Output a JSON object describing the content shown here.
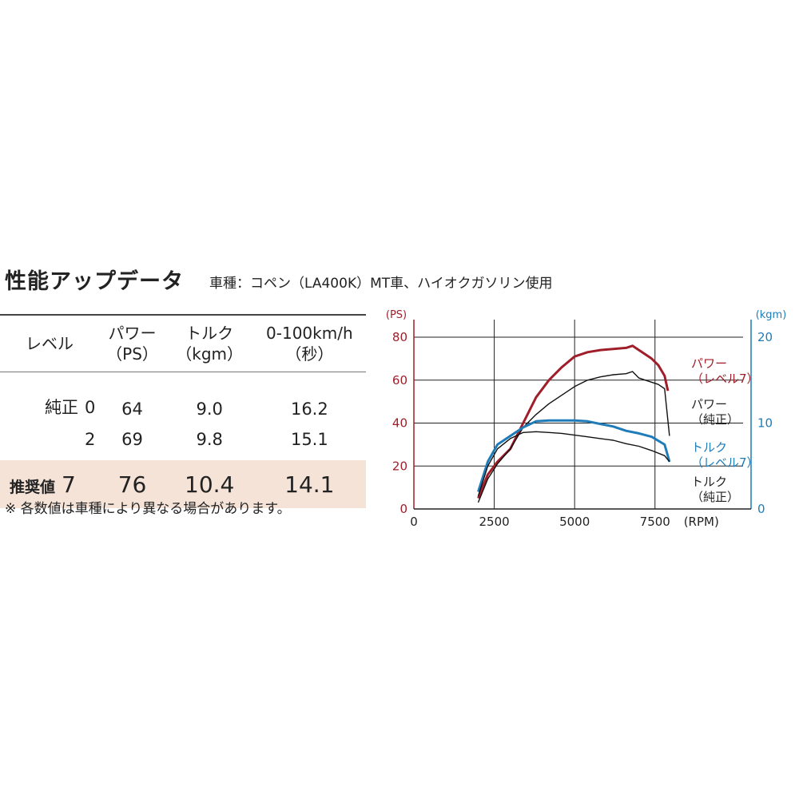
{
  "header": {
    "title": "性能アップデータ",
    "subtitle": "車種：コペン（LA400K）MT車、ハイオクガソリン使用"
  },
  "table": {
    "headers": [
      {
        "line1": "レベル",
        "line2": ""
      },
      {
        "line1": "パワー",
        "line2": "（PS）"
      },
      {
        "line1": "トルク",
        "line2": "（kgm）"
      },
      {
        "line1": "0-100km/h",
        "line2": "（秒）"
      }
    ],
    "rows": [
      {
        "label": "純正",
        "level": "0",
        "power": "64",
        "torque": "9.0",
        "accel": "16.2"
      },
      {
        "label": "",
        "level": "2",
        "power": "69",
        "torque": "9.8",
        "accel": "15.1"
      },
      {
        "label": "推奨値",
        "level": "7",
        "power": "76",
        "torque": "10.4",
        "accel": "14.1"
      }
    ],
    "recommended_bg": "#f5e3d8"
  },
  "footnote": "※ 各数値は車種により異なる場合があります。",
  "chart_data": {
    "type": "line",
    "x_unit": "(RPM)",
    "xlim": [
      0,
      8500
    ],
    "x_ticks": [
      {
        "v": 0,
        "label": "0"
      },
      {
        "v": 2500,
        "label": "2500"
      },
      {
        "v": 5000,
        "label": "5000"
      },
      {
        "v": 7500,
        "label": "7500"
      }
    ],
    "y_left": {
      "unit": "(PS)",
      "lim": [
        0,
        80
      ],
      "ticks": [
        "0",
        "20",
        "40",
        "60",
        "80"
      ],
      "color": "#a01e2a"
    },
    "y_right": {
      "unit": "(kgm)",
      "lim": [
        0,
        20
      ],
      "ticks": [
        "0",
        "10",
        "20"
      ],
      "color": "#1f7cb8"
    },
    "grid": true,
    "series": [
      {
        "name": "パワー（レベル7）",
        "label_lines": [
          "パワー",
          "（レベル7）"
        ],
        "axis": "left",
        "color": "#a01e2a",
        "width": 3,
        "x": [
          2000,
          2300,
          2600,
          3000,
          3400,
          3800,
          4200,
          4600,
          5000,
          5400,
          5800,
          6200,
          6600,
          6800,
          7000,
          7200,
          7400,
          7600,
          7800,
          7900
        ],
        "y": [
          5,
          16,
          22,
          28,
          40,
          52,
          60,
          66,
          71,
          73,
          74,
          74.5,
          75,
          76,
          74,
          72,
          70,
          67,
          62,
          55
        ]
      },
      {
        "name": "パワー（純正）",
        "label_lines": [
          "パワー",
          "（純正）"
        ],
        "axis": "left",
        "color": "#111111",
        "width": 1.4,
        "x": [
          2000,
          2300,
          2600,
          3000,
          3400,
          3800,
          4200,
          4600,
          5000,
          5400,
          5800,
          6200,
          6600,
          6800,
          7000,
          7200,
          7400,
          7600,
          7800,
          7950
        ],
        "y": [
          3,
          14,
          21,
          28,
          38,
          44,
          49,
          53,
          57,
          60,
          61.5,
          62.5,
          63,
          64,
          61,
          60,
          59,
          58,
          56,
          34
        ]
      },
      {
        "name": "トルク（レベル7）",
        "label_lines": [
          "トルク",
          "（レベル7）"
        ],
        "axis": "right",
        "color": "#1f7cb8",
        "width": 3,
        "x": [
          2000,
          2300,
          2600,
          3000,
          3400,
          3800,
          4200,
          4600,
          5000,
          5400,
          5800,
          6200,
          6600,
          7000,
          7400,
          7800,
          7950
        ],
        "y": [
          2,
          5.5,
          7.5,
          8.5,
          9.5,
          10.2,
          10.3,
          10.3,
          10.3,
          10.2,
          9.9,
          9.6,
          9.1,
          8.8,
          8.4,
          7.5,
          5.5
        ]
      },
      {
        "name": "トルク（純正）",
        "label_lines": [
          "トルク",
          "（純正）"
        ],
        "axis": "right",
        "color": "#111111",
        "width": 1.4,
        "x": [
          2000,
          2300,
          2600,
          3000,
          3400,
          3800,
          4200,
          4600,
          5000,
          5400,
          5800,
          6200,
          6600,
          7000,
          7400,
          7800,
          7950
        ],
        "y": [
          1.5,
          5,
          7,
          8.2,
          8.9,
          9.0,
          8.9,
          8.8,
          8.6,
          8.4,
          8.2,
          8.0,
          7.6,
          7.3,
          6.8,
          6.2,
          5.5
        ]
      }
    ]
  }
}
